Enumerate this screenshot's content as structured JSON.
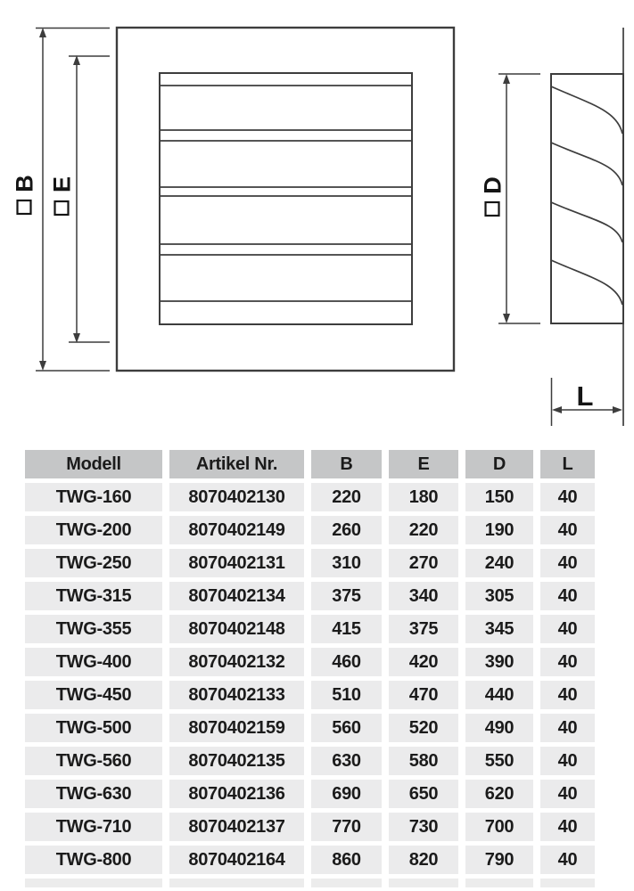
{
  "diagram": {
    "labels": {
      "b": "B",
      "e": "E",
      "d": "D",
      "l": "L"
    },
    "square_symbol": "□"
  },
  "table": {
    "headers": [
      "Modell",
      "Artikel Nr.",
      "B",
      "E",
      "D",
      "L"
    ],
    "rows": [
      [
        "TWG-160",
        "8070402130",
        "220",
        "180",
        "150",
        "40"
      ],
      [
        "TWG-200",
        "8070402149",
        "260",
        "220",
        "190",
        "40"
      ],
      [
        "TWG-250",
        "8070402131",
        "310",
        "270",
        "240",
        "40"
      ],
      [
        "TWG-315",
        "8070402134",
        "375",
        "340",
        "305",
        "40"
      ],
      [
        "TWG-355",
        "8070402148",
        "415",
        "375",
        "345",
        "40"
      ],
      [
        "TWG-400",
        "8070402132",
        "460",
        "420",
        "390",
        "40"
      ],
      [
        "TWG-450",
        "8070402133",
        "510",
        "470",
        "440",
        "40"
      ],
      [
        "TWG-500",
        "8070402159",
        "560",
        "520",
        "490",
        "40"
      ],
      [
        "TWG-560",
        "8070402135",
        "630",
        "580",
        "550",
        "40"
      ],
      [
        "TWG-630",
        "8070402136",
        "690",
        "650",
        "620",
        "40"
      ],
      [
        "TWG-710",
        "8070402137",
        "770",
        "730",
        "700",
        "40"
      ],
      [
        "TWG-800",
        "8070402164",
        "860",
        "820",
        "790",
        "40"
      ]
    ]
  },
  "colors": {
    "header_bg": "#c5c6c7",
    "row_bg": "#ebebec",
    "line": "#3d3d3d",
    "text": "#1b1b1b"
  }
}
